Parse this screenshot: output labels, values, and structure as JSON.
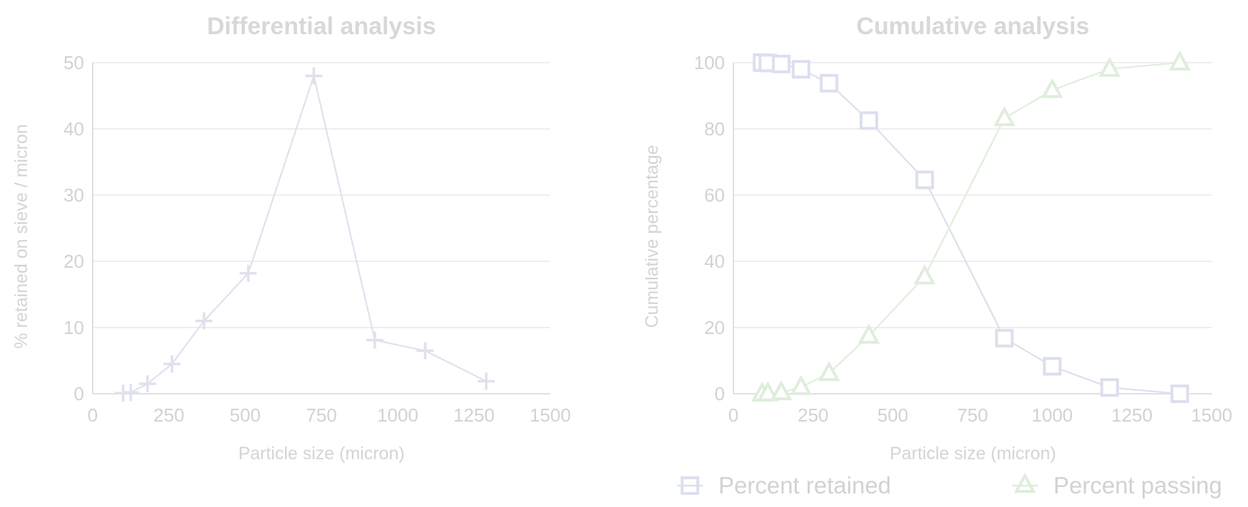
{
  "colors": {
    "differential": "#dfe1ee",
    "retained": "#dcdfee",
    "passing": "#dfeedc",
    "text": "#d2d2d2",
    "grid": "#eeeeee"
  },
  "chart_data": [
    {
      "type": "line",
      "title": "Differential analysis",
      "xlabel": "Particle size (micron)",
      "ylabel": "% retained on sieve / micron",
      "xlim": [
        0,
        1500
      ],
      "ylim": [
        0,
        50
      ],
      "xticks": [
        "0",
        "250",
        "500",
        "750",
        "1000",
        "1250",
        "1500"
      ],
      "yticks": [
        "0",
        "10",
        "20",
        "30",
        "40",
        "50"
      ],
      "grid": true,
      "series": [
        {
          "marker": "plus",
          "x": [
            100,
            125,
            180,
            260,
            365,
            510,
            725,
            925,
            1090,
            1290
          ],
          "y": [
            0.1,
            0.2,
            1.5,
            4.5,
            11,
            18.2,
            48,
            8.1,
            6.5,
            1.9
          ]
        }
      ]
    },
    {
      "type": "line",
      "title": "Cumulative analysis",
      "xlabel": "Particle size (micron)",
      "ylabel": "Cumulative percentage",
      "xlim": [
        0,
        1500
      ],
      "ylim": [
        0,
        100
      ],
      "xticks": [
        "0",
        "250",
        "500",
        "750",
        "1000",
        "1250",
        "1500"
      ],
      "yticks": [
        "0",
        "20",
        "40",
        "60",
        "80",
        "100"
      ],
      "grid": true,
      "legend": "bottom",
      "series": [
        {
          "name": "Percent retained",
          "marker": "square",
          "x": [
            90,
            108,
            150,
            212,
            300,
            425,
            600,
            850,
            1000,
            1180,
            1400
          ],
          "y": [
            100,
            99.9,
            99.6,
            98,
            93.8,
            82.5,
            64.6,
            16.8,
            8.3,
            1.9,
            0
          ]
        },
        {
          "name": "Percent passing",
          "marker": "triangle",
          "x": [
            90,
            108,
            150,
            212,
            300,
            425,
            600,
            850,
            1000,
            1180,
            1400
          ],
          "y": [
            0,
            0.1,
            0.4,
            2,
            6.2,
            17.5,
            35.4,
            83.2,
            91.7,
            98.1,
            100
          ]
        }
      ]
    }
  ]
}
